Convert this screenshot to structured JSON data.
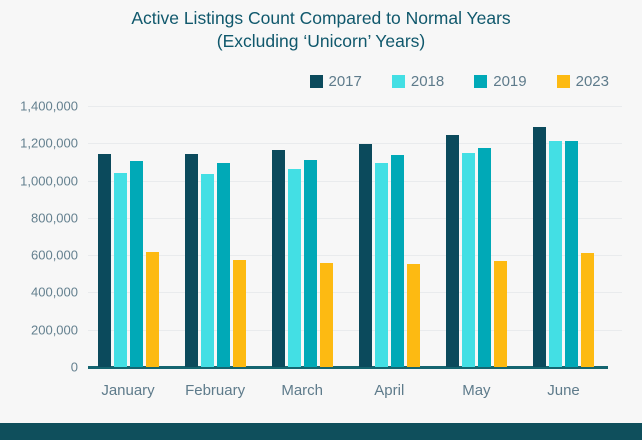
{
  "title": {
    "line1": "Active Listings Count Compared to Normal Years",
    "line2": "(Excluding ‘Unicorn’ Years)"
  },
  "colors": {
    "background": "#f7f7f7",
    "title_text": "#10586c",
    "axis_text": "#64808f",
    "axis_line": "#156570",
    "gridline": "#e9ebed",
    "footer_band": "#0f4f5c"
  },
  "chart_data": {
    "type": "bar",
    "title": "Active Listings Count Compared to Normal Years (Excluding ‘Unicorn’ Years)",
    "categories": [
      "January",
      "February",
      "March",
      "April",
      "May",
      "June"
    ],
    "series": [
      {
        "name": "2017",
        "color": "#0b4a5c",
        "values": [
          1145000,
          1145000,
          1165000,
          1195000,
          1245000,
          1290000
        ]
      },
      {
        "name": "2018",
        "color": "#43dfe4",
        "values": [
          1040000,
          1035000,
          1060000,
          1095000,
          1150000,
          1215000
        ]
      },
      {
        "name": "2019",
        "color": "#00a9b7",
        "values": [
          1105000,
          1095000,
          1110000,
          1135000,
          1175000,
          1210000
        ]
      },
      {
        "name": "2023",
        "color": "#fdba12",
        "values": [
          615000,
          575000,
          560000,
          555000,
          570000,
          610000
        ]
      }
    ],
    "xlabel": "",
    "ylabel": "",
    "ylim": [
      0,
      1400000
    ],
    "ytick_interval": 200000,
    "yticks_labels": [
      "1,400,000",
      "1,200,000",
      "1,000,000",
      "800,000",
      "600,000",
      "400,000",
      "200,000",
      "0"
    ],
    "grid": true,
    "legend_position": "top-right"
  }
}
